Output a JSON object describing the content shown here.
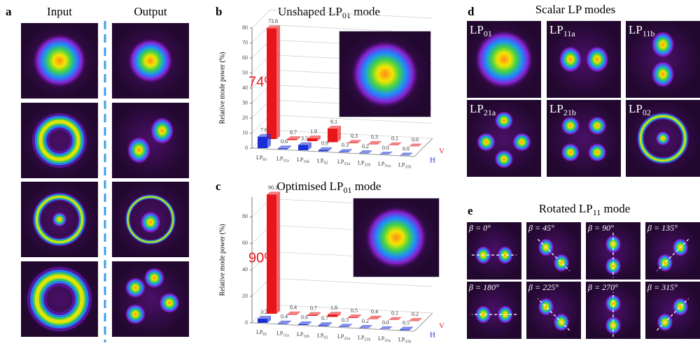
{
  "panels": {
    "a": {
      "label": "a",
      "input_title": "Input",
      "output_title": "Output"
    },
    "d": {
      "label": "d",
      "title": "Scalar LP modes",
      "modes": [
        [
          "LP",
          "01"
        ],
        [
          "LP",
          "11a"
        ],
        [
          "LP",
          "11b"
        ],
        [
          "LP",
          "21a"
        ],
        [
          "LP",
          "21b"
        ],
        [
          "LP",
          "02"
        ]
      ]
    },
    "e": {
      "label": "e",
      "title": [
        "Rotated LP",
        "11",
        " mode"
      ],
      "angles": [
        "β = 0°",
        "β = 45°",
        "β = 90°",
        "β = 135°",
        "β = 180°",
        "β = 225°",
        "β = 270°",
        "β = 315°"
      ]
    }
  },
  "chart_data": [
    {
      "type": "bar3d",
      "panel_label": "b",
      "title": [
        "Unshaped  LP",
        "01",
        " mode"
      ],
      "annotation": "74%",
      "y_label": "Relative mode power (%)",
      "categories": [
        [
          "LP",
          "01"
        ],
        [
          "LP",
          "11a"
        ],
        [
          "LP",
          "11b"
        ],
        [
          "LP",
          "02"
        ],
        [
          "LP",
          "21a"
        ],
        [
          "LP",
          "21b"
        ],
        [
          "LP",
          "31a"
        ],
        [
          "LP",
          "31b"
        ]
      ],
      "series": [
        {
          "name": "V",
          "color": "#e8161a",
          "values": [
            73.8,
            0.7,
            1.9,
            9.1,
            0.3,
            0.3,
            0.1,
            0
          ],
          "value_labels": [
            "73.8",
            "0.7",
            "1.9",
            "9.1",
            "0.3",
            "0.3",
            "0.1",
            "0.0"
          ]
        },
        {
          "name": "H",
          "color": "#1a2fd6",
          "values": [
            7.6,
            0.6,
            3.5,
            0.9,
            0.3,
            0.2,
            0,
            0
          ],
          "value_labels": [
            "7.6",
            "0.6",
            "3.5",
            "0.9",
            "0.3",
            "0.2",
            "0.0",
            "0.0"
          ]
        }
      ],
      "ylim": [
        0,
        80
      ],
      "yticks": [
        0,
        10,
        20,
        30,
        40,
        50,
        60,
        70,
        80
      ],
      "grid": true
    },
    {
      "type": "bar3d",
      "panel_label": "c",
      "title": [
        "Optimised LP",
        "01",
        " mode"
      ],
      "annotation": "90%",
      "y_label": "Relative mode power (%)",
      "categories": [
        [
          "LP",
          "01"
        ],
        [
          "LP",
          "11a"
        ],
        [
          "LP",
          "11b"
        ],
        [
          "LP",
          "02"
        ],
        [
          "LP",
          "21a"
        ],
        [
          "LP",
          "21b"
        ],
        [
          "LP",
          "31a"
        ],
        [
          "LP",
          "31b"
        ]
      ],
      "series": [
        {
          "name": "V",
          "color": "#e8161a",
          "values": [
            90.1,
            0.4,
            0.7,
            1.8,
            0.5,
            0.4,
            0.1,
            0.2
          ],
          "value_labels": [
            "90.1",
            "0.4",
            "0.7",
            "1.8",
            "0.5",
            "0.4",
            "0.1",
            "0.2"
          ]
        },
        {
          "name": "H",
          "color": "#1a2fd6",
          "values": [
            3.2,
            0.4,
            0.6,
            0.7,
            0.3,
            0.2,
            0,
            0.5
          ],
          "value_labels": [
            "3.2",
            "0.4",
            "0.6",
            "0.7",
            "0.3",
            "0.2",
            "0.0",
            "0.5"
          ]
        }
      ],
      "ylim": [
        0,
        95
      ],
      "yticks": [
        0,
        20,
        40,
        60,
        80
      ],
      "grid": true
    }
  ]
}
